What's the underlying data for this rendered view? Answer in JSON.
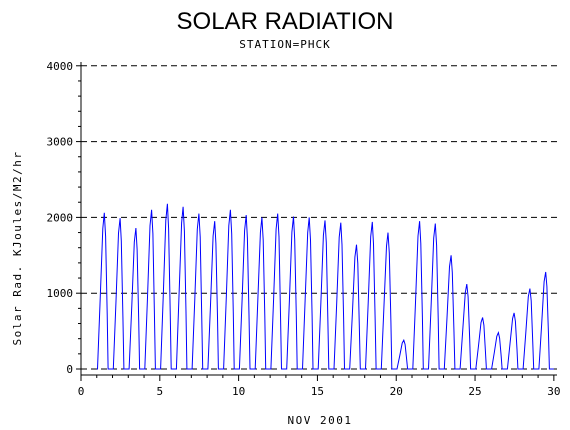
{
  "chart_data": {
    "type": "line",
    "title": "SOLAR RADIATION",
    "subtitle": "STATION=PHCK",
    "xlabel": "NOV 2001",
    "ylabel": "Solar Rad. KJoules/M2/hr",
    "xlim": [
      0,
      30.2
    ],
    "ylim": [
      0,
      4050
    ],
    "xticks": [
      0,
      5,
      10,
      15,
      20,
      25,
      30
    ],
    "yticks": [
      0,
      1000,
      2000,
      3000,
      4000
    ],
    "ytick_labels": [
      "0",
      "1000",
      "2000",
      "3000",
      "4000"
    ],
    "grid": "dashed horizontal at y ticks",
    "series_color": "#0000ff",
    "daily_peaks": [
      {
        "day": 1,
        "peak": 2060
      },
      {
        "day": 2,
        "peak": 1990
      },
      {
        "day": 3,
        "peak": 1860
      },
      {
        "day": 4,
        "peak": 2100
      },
      {
        "day": 5,
        "peak": 2180
      },
      {
        "day": 6,
        "peak": 2140
      },
      {
        "day": 7,
        "peak": 2050
      },
      {
        "day": 8,
        "peak": 1950
      },
      {
        "day": 9,
        "peak": 2100
      },
      {
        "day": 10,
        "peak": 2030
      },
      {
        "day": 11,
        "peak": 2000
      },
      {
        "day": 12,
        "peak": 2050
      },
      {
        "day": 13,
        "peak": 2010
      },
      {
        "day": 14,
        "peak": 2000
      },
      {
        "day": 15,
        "peak": 1960
      },
      {
        "day": 16,
        "peak": 1930
      },
      {
        "day": 17,
        "peak": 1640
      },
      {
        "day": 18,
        "peak": 1940
      },
      {
        "day": 19,
        "peak": 1800
      },
      {
        "day": 20,
        "peak": 380
      },
      {
        "day": 21,
        "peak": 1950
      },
      {
        "day": 22,
        "peak": 1920
      },
      {
        "day": 23,
        "peak": 1500
      },
      {
        "day": 24,
        "peak": 1120
      },
      {
        "day": 25,
        "peak": 680
      },
      {
        "day": 26,
        "peak": 480
      },
      {
        "day": 27,
        "peak": 740
      },
      {
        "day": 28,
        "peak": 1060
      },
      {
        "day": 29,
        "peak": 1280
      }
    ]
  }
}
